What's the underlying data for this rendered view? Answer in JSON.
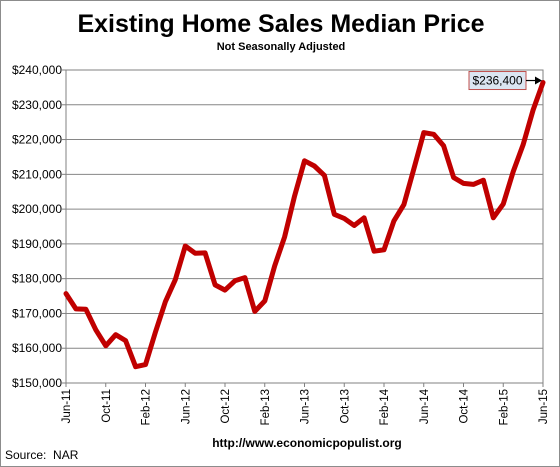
{
  "chart_data": {
    "type": "line",
    "title": "Existing Home Sales Median Price",
    "subtitle": "Not Seasonally Adjusted",
    "source": "Source:  NAR",
    "website": "http://www.economicpopulist.org",
    "xlabel": "",
    "ylabel": "",
    "ylim": [
      150000,
      240000
    ],
    "y_ticks": [
      150000,
      160000,
      170000,
      180000,
      190000,
      200000,
      210000,
      220000,
      230000,
      240000
    ],
    "y_tick_labels": [
      "$150,000",
      "$160,000",
      "$170,000",
      "$180,000",
      "$190,000",
      "$200,000",
      "$210,000",
      "$220,000",
      "$230,000",
      "$240,000"
    ],
    "x_tick_labels": [
      "Jun-11",
      "Oct-11",
      "Feb-12",
      "Jun-12",
      "Oct-12",
      "Feb-13",
      "Jun-13",
      "Oct-13",
      "Feb-14",
      "Jun-14",
      "Oct-14",
      "Feb-15",
      "Jun-15"
    ],
    "x_tick_indices": [
      0,
      4,
      8,
      12,
      16,
      20,
      24,
      28,
      32,
      36,
      40,
      44,
      48
    ],
    "grid": true,
    "legend": "none",
    "series_color": "#c00000",
    "x": [
      "Jun-11",
      "Jul-11",
      "Aug-11",
      "Sep-11",
      "Oct-11",
      "Nov-11",
      "Dec-11",
      "Jan-12",
      "Feb-12",
      "Mar-12",
      "Apr-12",
      "May-12",
      "Jun-12",
      "Jul-12",
      "Aug-12",
      "Sep-12",
      "Oct-12",
      "Nov-12",
      "Dec-12",
      "Jan-13",
      "Feb-13",
      "Mar-13",
      "Apr-13",
      "May-13",
      "Jun-13",
      "Jul-13",
      "Aug-13",
      "Sep-13",
      "Oct-13",
      "Nov-13",
      "Dec-13",
      "Jan-14",
      "Feb-14",
      "Mar-14",
      "Apr-14",
      "May-14",
      "Jun-14",
      "Jul-14",
      "Aug-14",
      "Sep-14",
      "Oct-14",
      "Nov-14",
      "Dec-14",
      "Jan-15",
      "Feb-15",
      "Mar-15",
      "Apr-15",
      "May-15",
      "Jun-15"
    ],
    "series": [
      {
        "values": [
          175700,
          171300,
          171200,
          165300,
          160700,
          163900,
          162200,
          154700,
          155300,
          164600,
          173400,
          179700,
          189400,
          187300,
          187400,
          178200,
          176700,
          179400,
          180300,
          170600,
          173600,
          183700,
          192000,
          203800,
          213900,
          212400,
          209700,
          198500,
          197300,
          195300,
          197500,
          187900,
          188300,
          196600,
          201300,
          211500,
          222000,
          221500,
          218200,
          209100,
          207400,
          207100,
          208300,
          197500,
          201500,
          210800,
          218500,
          228500,
          236400
        ]
      }
    ],
    "annotations": [
      {
        "label": "$236,400",
        "point_index": 48
      }
    ]
  }
}
